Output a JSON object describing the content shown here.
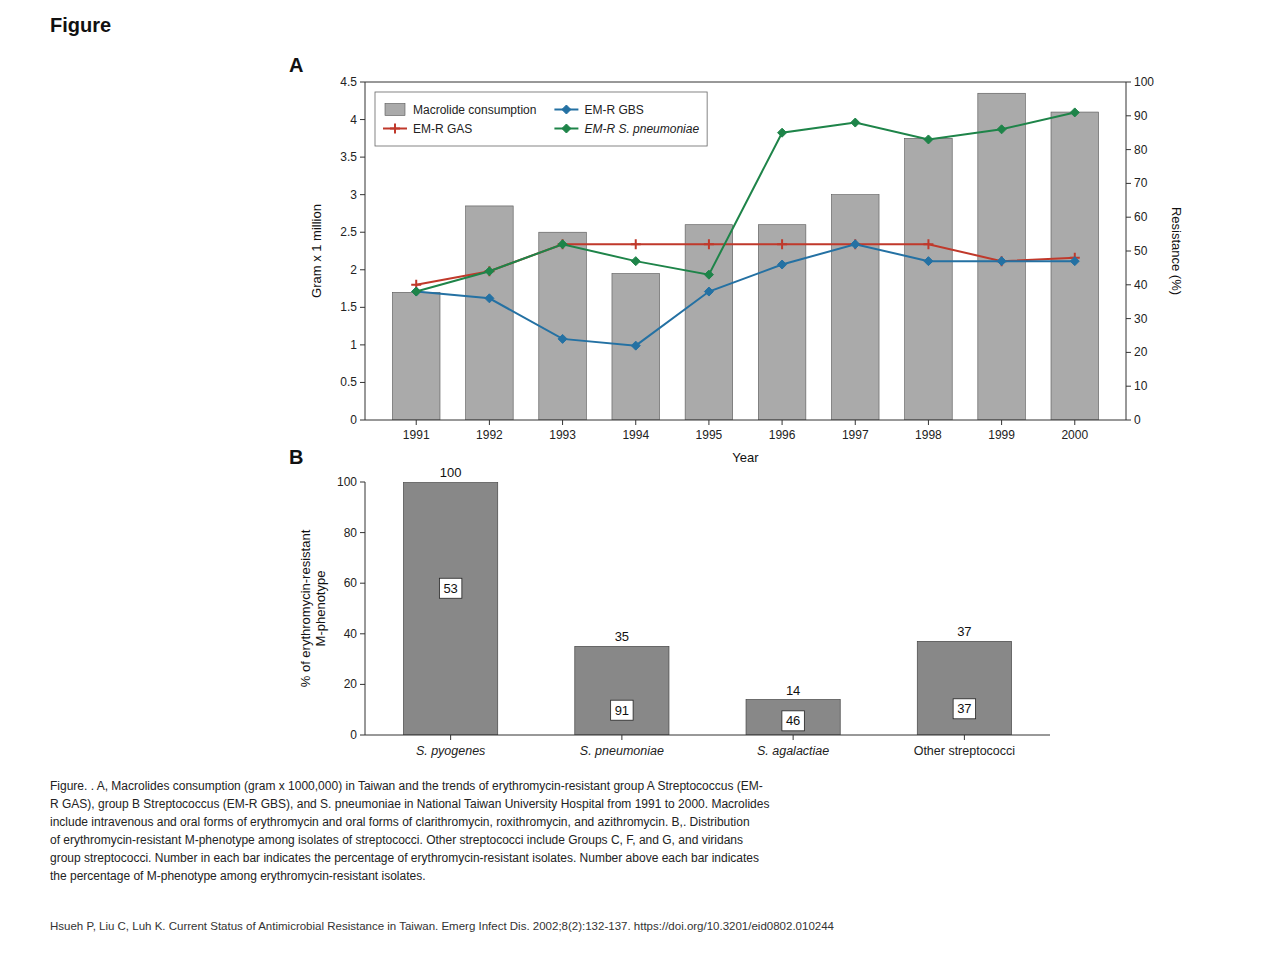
{
  "title": "Figure",
  "annotations": [
    "Figure. . A, Macrolides consumption (gram x 1000,000) in Taiwan and the trends of erythromycin-resistant group A Streptococcus (EM-",
    "R GAS), group B Streptococcus (EM-R GBS), and S. pneumoniae in National Taiwan University Hospital from 1991 to 2000. Macrolides",
    "include intravenous and oral forms of erythromycin and oral forms of clarithromycin, roxithromycin, and azithromycin. B,. Distribution",
    "of erythromycin-resistant M-phenotype among isolates of streptococci. Other streptococci include Groups C, F, and G, and viridans",
    "group streptococci. Number in each bar indicates the percentage of erythromycin-resistant isolates. Number above each bar indicates",
    "the percentage of M-phenotype among erythromycin-resistant isolates.",
    "Hsueh P, Liu C, Luh K. Current Status of Antimicrobial Resistance in Taiwan. Emerg Infect Dis. 2002;8(2):132-137. https://doi.org/10.3201/eid0802.010244"
  ],
  "chart_data": [
    {
      "type": "bar",
      "title": "A",
      "x": [
        1991,
        1992,
        1993,
        1994,
        1995,
        1996,
        1997,
        1998,
        1999,
        2000
      ],
      "xlim": [
        1990.3,
        2000.7
      ],
      "xticks": [
        1991,
        1992,
        1993,
        1994,
        1995,
        1996,
        1997,
        1998,
        1999,
        2000
      ],
      "xlabel": "Year",
      "ylabel": "Gram x 1 million",
      "ylim": [
        0,
        4.5
      ],
      "yticks": [
        0,
        0.5,
        1,
        1.5,
        2,
        2.5,
        3,
        3.5,
        4,
        4.5
      ],
      "y2label": "Resistance (%)",
      "y2lim": [
        0,
        100
      ],
      "y2ticks": [
        0,
        10,
        20,
        30,
        40,
        50,
        60,
        70,
        80,
        90,
        100
      ],
      "legend": "upper left",
      "grid": false,
      "series": [
        {
          "name": "Macrolide consumption",
          "type": "bar",
          "color": "#aaaaaa",
          "values": [
            1.7,
            2.85,
            2.5,
            1.95,
            2.6,
            2.6,
            3.0,
            3.75,
            4.35,
            4.1
          ]
        },
        {
          "name": "EM-R GAS",
          "type": "line",
          "axis": "y2",
          "color": "#c0392b",
          "marker": "plus",
          "values": [
            40,
            44,
            52,
            52,
            52,
            52,
            52,
            52,
            47,
            48
          ]
        },
        {
          "name": "EM-R GBS",
          "type": "line",
          "axis": "y2",
          "color": "#2471a3",
          "marker": "diamond",
          "values": [
            38,
            36,
            24,
            22,
            38,
            46,
            52,
            47,
            47,
            47
          ]
        },
        {
          "name": "EM-R S. pneumoniae",
          "type": "line",
          "axis": "y2",
          "color": "#1e8449",
          "marker": "diamond",
          "values": [
            38,
            44,
            52,
            47,
            43,
            85,
            88,
            83,
            86,
            91
          ]
        }
      ]
    },
    {
      "type": "bar",
      "title": "B",
      "categories": [
        "S. pyogenes",
        "S. pneumoniae",
        "S. agalactiae",
        "Other streptococci"
      ],
      "values": [
        100,
        35,
        14,
        37
      ],
      "color": "#888888",
      "data_labels": true,
      "inside_labels": [
        53,
        91,
        46,
        37
      ],
      "ylabel": "% of erythromycin-resistant\nM-phenotype",
      "ylim": [
        0,
        100
      ],
      "yticks": [
        0,
        20,
        40,
        60,
        80,
        100
      ],
      "grid": false
    }
  ]
}
